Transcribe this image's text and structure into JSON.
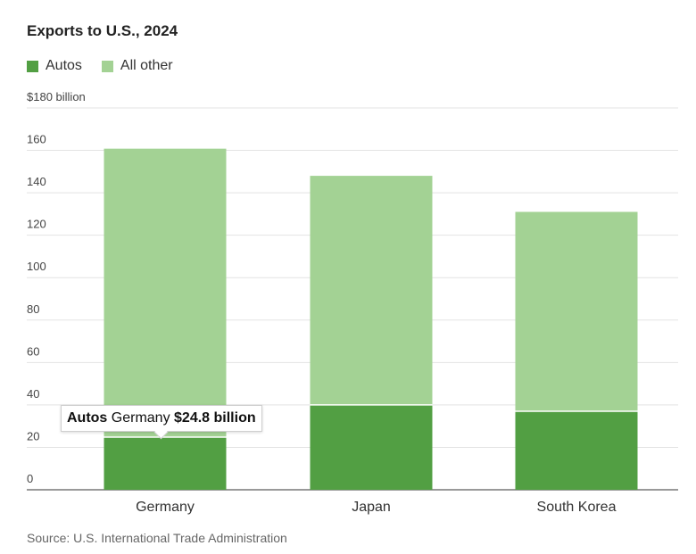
{
  "chart_data": {
    "type": "bar",
    "stacked": true,
    "title": "Exports to U.S., 2024",
    "categories": [
      "Germany",
      "Japan",
      "South Korea"
    ],
    "series": [
      {
        "name": "Autos",
        "values": [
          24.8,
          40,
          37
        ],
        "color": "#529f43"
      },
      {
        "name": "All other",
        "values": [
          136,
          108,
          94
        ],
        "color": "#a3d294"
      }
    ],
    "ylim": [
      0,
      180
    ],
    "yticks": [
      0,
      20,
      40,
      60,
      80,
      100,
      120,
      140,
      160,
      180
    ],
    "ytick_labels": [
      "0",
      "20",
      "40",
      "60",
      "80",
      "100",
      "120",
      "140",
      "160",
      "$180 billion"
    ],
    "grid": true,
    "legend_position": "top-left",
    "tooltip": {
      "series": "Autos",
      "category": "Germany",
      "value": "$24.8 billion"
    },
    "source": "Source: U.S. International Trade Administration"
  }
}
